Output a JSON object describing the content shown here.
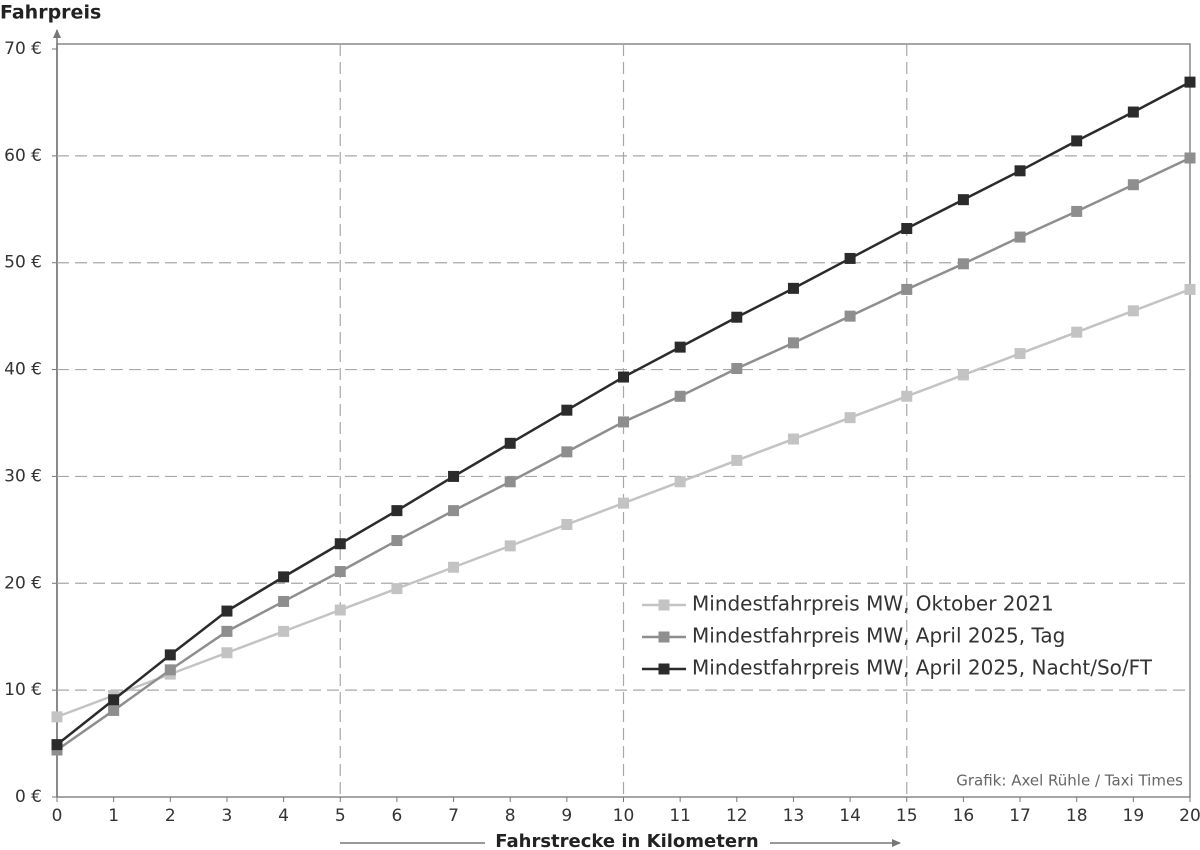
{
  "chart_data": {
    "type": "line",
    "title": "Fahrpreis",
    "x_label": "Fahrstrecke in Kilometern",
    "credit": "Grafik: Axel Rühle / Taxi Times",
    "x": [
      0,
      1,
      2,
      3,
      4,
      5,
      6,
      7,
      8,
      9,
      10,
      11,
      12,
      13,
      14,
      15,
      16,
      17,
      18,
      19,
      20
    ],
    "series": [
      {
        "name": "Mindestfahrpreis MW, Oktober 2021",
        "color": "#c3c3c3",
        "values": [
          7.5,
          9.5,
          11.5,
          13.5,
          15.5,
          17.5,
          19.5,
          21.5,
          23.5,
          25.5,
          27.5,
          29.5,
          31.5,
          33.5,
          35.5,
          37.5,
          39.5,
          41.5,
          43.5,
          45.5,
          47.5
        ]
      },
      {
        "name": "Mindestfahrpreis MW, April 2025, Tag",
        "color": "#8e8e8e",
        "values": [
          4.4,
          8.1,
          11.9,
          15.5,
          18.3,
          21.1,
          24.0,
          26.8,
          29.5,
          32.3,
          35.1,
          37.5,
          40.1,
          42.5,
          45.0,
          47.5,
          49.9,
          52.4,
          54.8,
          57.3,
          59.8
        ]
      },
      {
        "name": "Mindestfahrpreis MW, April 2025, Nacht/So/FT",
        "color": "#2b2b2b",
        "values": [
          4.9,
          9.1,
          13.3,
          17.4,
          20.6,
          23.7,
          26.8,
          30.0,
          33.1,
          36.2,
          39.3,
          42.1,
          44.9,
          47.6,
          50.4,
          53.2,
          55.9,
          58.6,
          61.4,
          64.1,
          66.9
        ]
      }
    ],
    "xlim": [
      0,
      20
    ],
    "xticks": [
      0,
      1,
      2,
      3,
      4,
      5,
      6,
      7,
      8,
      9,
      10,
      11,
      12,
      13,
      14,
      15,
      16,
      17,
      18,
      19,
      20
    ],
    "ylim": [
      0,
      70
    ],
    "yticks": [
      {
        "value": 0,
        "label": "0 €"
      },
      {
        "value": 10,
        "label": "10 €"
      },
      {
        "value": 20,
        "label": "20 €"
      },
      {
        "value": 30,
        "label": "30 €"
      },
      {
        "value": 40,
        "label": "40 €"
      },
      {
        "value": 50,
        "label": "50 €"
      },
      {
        "value": 60,
        "label": "60 €"
      },
      {
        "value": 70,
        "label": "70 €"
      }
    ],
    "grid": true,
    "legend": "lower right"
  }
}
